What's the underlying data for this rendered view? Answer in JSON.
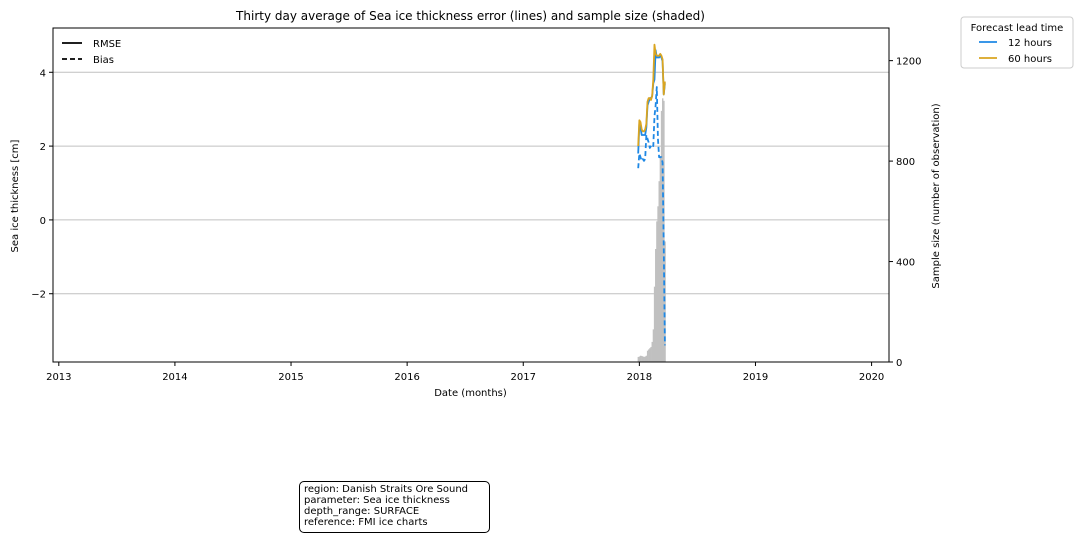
{
  "chart_data": {
    "type": "line",
    "title": "Thirty day average of Sea ice thickness error (lines) and sample size (shaded)",
    "xlabel": "Date (months)",
    "ylabel": "Sea ice thickness [cm]",
    "y2label": "Sample size (number of observation)",
    "xlim": [
      2012.95,
      2020.15
    ],
    "ylim": [
      -3.85,
      5.2
    ],
    "y2lim": [
      0,
      1330
    ],
    "xticks": [
      2013,
      2014,
      2015,
      2016,
      2017,
      2018,
      2019,
      2020
    ],
    "yticks": [
      -2,
      0,
      2,
      4
    ],
    "ytick_labels": [
      "−2",
      "0",
      "2",
      "4"
    ],
    "y2ticks": [
      0,
      400,
      800,
      1200
    ],
    "grid": "horizontal",
    "style_legend": {
      "placement": "top-left",
      "entries": [
        {
          "label": "RMSE",
          "style": "solid"
        },
        {
          "label": "Bias",
          "style": "dashed"
        }
      ]
    },
    "lead_time_legend": {
      "title": "Forecast lead time",
      "placement": "outside-top-right",
      "entries": [
        {
          "label": "12 hours",
          "color": "#1e88e5"
        },
        {
          "label": "60 hours",
          "color": "#daa520"
        }
      ]
    },
    "series": [
      {
        "name": "RMSE 12 hours",
        "color": "#1e88e5",
        "style": "solid",
        "x": [
          2017.99,
          2018.0,
          2018.01,
          2018.02,
          2018.03,
          2018.04,
          2018.05,
          2018.06,
          2018.07,
          2018.08,
          2018.09,
          2018.1,
          2018.11,
          2018.12,
          2018.13,
          2018.14,
          2018.15,
          2018.16,
          2018.17,
          2018.18,
          2018.19,
          2018.2,
          2018.21,
          2018.22
        ],
        "y": [
          1.8,
          2.6,
          2.5,
          2.3,
          2.3,
          2.3,
          2.3,
          2.5,
          3.1,
          3.2,
          3.3,
          3.3,
          3.35,
          3.7,
          3.8,
          4.6,
          4.4,
          4.4,
          4.4,
          4.45,
          4.4,
          4.3,
          3.4,
          3.7
        ]
      },
      {
        "name": "RMSE 60 hours",
        "color": "#daa520",
        "style": "solid",
        "x": [
          2017.99,
          2018.0,
          2018.01,
          2018.02,
          2018.03,
          2018.04,
          2018.05,
          2018.06,
          2018.07,
          2018.08,
          2018.09,
          2018.1,
          2018.11,
          2018.12,
          2018.13,
          2018.14,
          2018.15,
          2018.16,
          2018.17,
          2018.18,
          2018.19,
          2018.2,
          2018.21,
          2018.22
        ],
        "y": [
          2.0,
          2.7,
          2.65,
          2.45,
          2.4,
          2.4,
          2.45,
          2.6,
          3.2,
          3.3,
          3.3,
          3.25,
          3.35,
          3.8,
          4.75,
          4.5,
          4.45,
          4.45,
          4.45,
          4.5,
          4.45,
          4.35,
          3.4,
          3.75
        ]
      },
      {
        "name": "Bias 12 hours",
        "color": "#1e88e5",
        "style": "dashed",
        "x": [
          2017.99,
          2018.0,
          2018.01,
          2018.02,
          2018.03,
          2018.04,
          2018.05,
          2018.06,
          2018.07,
          2018.08,
          2018.09,
          2018.1,
          2018.11,
          2018.12,
          2018.13,
          2018.14,
          2018.15,
          2018.16,
          2018.17,
          2018.18,
          2018.19,
          2018.2,
          2018.21,
          2018.22
        ],
        "y": [
          1.4,
          1.8,
          1.7,
          1.6,
          1.65,
          1.6,
          1.65,
          2.3,
          2.2,
          2.1,
          1.95,
          2.0,
          2.05,
          2.0,
          2.8,
          3.1,
          3.6,
          2.2,
          1.7,
          1.7,
          1.7,
          1.55,
          -0.7,
          -3.4
        ]
      }
    ],
    "sample_size": {
      "color": "#c0c0c0",
      "x": [
        2017.99,
        2018.0,
        2018.01,
        2018.02,
        2018.03,
        2018.04,
        2018.05,
        2018.06,
        2018.07,
        2018.08,
        2018.09,
        2018.1,
        2018.11,
        2018.12,
        2018.13,
        2018.14,
        2018.15,
        2018.16,
        2018.17,
        2018.18,
        2018.19,
        2018.2,
        2018.21,
        2018.22
      ],
      "y": [
        20,
        22,
        25,
        24,
        22,
        20,
        22,
        25,
        45,
        50,
        55,
        60,
        80,
        130,
        300,
        450,
        560,
        620,
        720,
        820,
        1000,
        1050,
        1040,
        480
      ]
    }
  },
  "info_box": {
    "lines": [
      "region: Danish Straits Ore Sound",
      "parameter: Sea ice thickness",
      "depth_range: SURFACE",
      "reference: FMI ice charts"
    ]
  }
}
